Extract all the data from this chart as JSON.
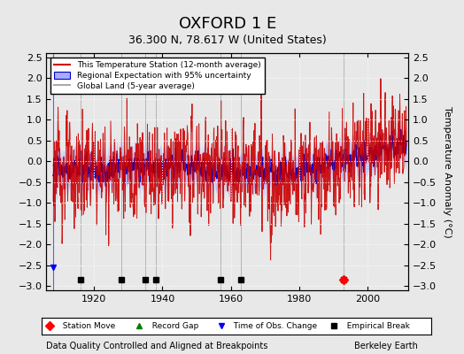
{
  "title": "OXFORD 1 E",
  "subtitle": "36.300 N, 78.617 W (United States)",
  "ylabel": "Temperature Anomaly (°C)",
  "xlabel_left": "Data Quality Controlled and Aligned at Breakpoints",
  "xlabel_right": "Berkeley Earth",
  "ylim": [
    -3.1,
    2.6
  ],
  "yticks": [
    -3,
    -2.5,
    -2,
    -1.5,
    -1,
    -0.5,
    0,
    0.5,
    1,
    1.5,
    2,
    2.5
  ],
  "xlim": [
    1906,
    2012
  ],
  "xticks": [
    1920,
    1940,
    1960,
    1980,
    2000
  ],
  "bg_color": "#e8e8e8",
  "plot_bg_color": "#e8e8e8",
  "station_color": "#cc0000",
  "regional_color": "#0000cc",
  "uncertainty_color": "#aaaaff",
  "global_color": "#aaaaaa",
  "empirical_break_years": [
    1916,
    1928,
    1935,
    1938,
    1957,
    1963,
    1993
  ],
  "station_move_years": [
    1993
  ],
  "time_obs_change_years": [
    1908
  ],
  "record_gap_years": []
}
